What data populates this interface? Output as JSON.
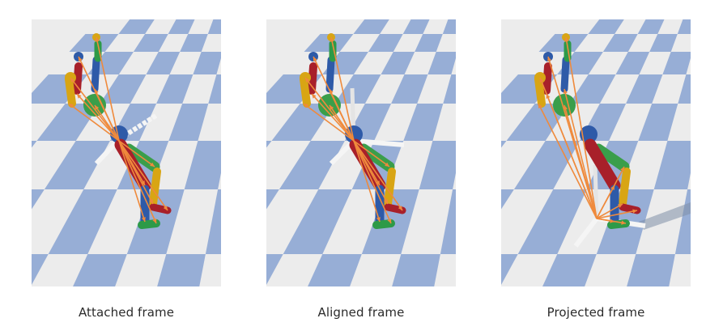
{
  "panels": [
    {
      "caption": "Attached frame"
    },
    {
      "caption": "Aligned frame"
    },
    {
      "caption": "Projected frame"
    }
  ],
  "colors": {
    "floor_blue": "#97aed6",
    "floor_white": "#ececec",
    "arrow": "#ef8a3c",
    "torso_green": "#3a9e4a",
    "limb_red": "#a8202a",
    "limb_blue": "#2e5aa8",
    "limb_yellow": "#d8a514",
    "foot_green": "#2d9a48"
  }
}
